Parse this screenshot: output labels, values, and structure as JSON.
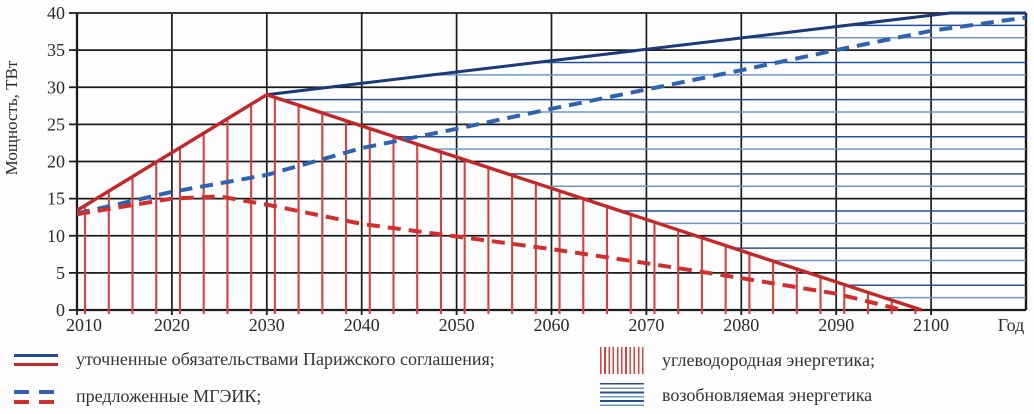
{
  "chart_data": {
    "type": "line",
    "title": "",
    "xlabel": "Год",
    "ylabel": "Мощность, ТВт",
    "xlim": [
      2010,
      2110
    ],
    "ylim": [
      0,
      40
    ],
    "x_ticks": [
      2010,
      2020,
      2030,
      2040,
      2050,
      2060,
      2070,
      2080,
      2090,
      2100
    ],
    "y_ticks": [
      0,
      5,
      10,
      15,
      20,
      25,
      30,
      35,
      40
    ],
    "grid": true,
    "legend_position": "bottom",
    "series": [
      {
        "name": "уточненные обязательствами Парижского соглашения — всего (синяя сплошная)",
        "style": "solid",
        "color": "#1a3a78",
        "width": 3,
        "points": [
          [
            2010,
            13.4
          ],
          [
            2030,
            29
          ],
          [
            2102,
            40
          ],
          [
            2110,
            40
          ]
        ]
      },
      {
        "name": "уточненные обязательствами Парижского соглашения — углеводородная (красная сплошная)",
        "style": "solid",
        "color": "#c32728",
        "width": 3.4,
        "points": [
          [
            2010,
            13.4
          ],
          [
            2030,
            29
          ],
          [
            2099,
            0
          ]
        ]
      },
      {
        "name": "предложенные МГЭИК — всего (синяя штриховая)",
        "style": "dashed",
        "color": "#2f63b0",
        "width": 4,
        "points": [
          [
            2010,
            13.0
          ],
          [
            2020,
            15.9
          ],
          [
            2030,
            18.2
          ],
          [
            2040,
            21.8
          ],
          [
            2050,
            24.4
          ],
          [
            2060,
            27.1
          ],
          [
            2070,
            29.7
          ],
          [
            2080,
            32.3
          ],
          [
            2090,
            35.0
          ],
          [
            2100,
            37.6
          ],
          [
            2110,
            39.4
          ]
        ]
      },
      {
        "name": "предложенные МГЭИК — углеводородная (красная штриховая)",
        "style": "dashed",
        "color": "#cf2f2f",
        "width": 4,
        "points": [
          [
            2010,
            12.9
          ],
          [
            2020,
            15.0
          ],
          [
            2025,
            15.3
          ],
          [
            2030,
            14.2
          ],
          [
            2040,
            11.6
          ],
          [
            2050,
            9.9
          ],
          [
            2060,
            8.2
          ],
          [
            2070,
            6.3
          ],
          [
            2080,
            4.3
          ],
          [
            2090,
            2.2
          ],
          [
            2097,
            0
          ]
        ]
      }
    ],
    "areas": [
      {
        "name": "углеводородная энергетика",
        "hatch": "vertical",
        "color": "#d6423e",
        "region": "под красной сплошной линией, 2010–2099"
      },
      {
        "name": "возобновляемая энергетика",
        "hatch": "horizontal",
        "color_dark": "#27509a",
        "color_light": "#6d95cd",
        "region": "между красной и синей сплошными линиями, 2030–2110"
      }
    ]
  },
  "axes": {
    "x_title": "Год",
    "y_title": "Мощность, ТВт"
  },
  "legend": {
    "items": [
      {
        "label": "уточненные обязательствами Парижского соглашения;"
      },
      {
        "label": "предложенные МГЭИК;"
      },
      {
        "label": "углеводородная энергетика;"
      },
      {
        "label": "возобновляемая энергетика"
      }
    ]
  },
  "style": {
    "grid_color": "#1c1c1c",
    "text_color": "#2b2b2b",
    "blue_solid": "#1a3a78",
    "red_solid": "#c32728",
    "blue_dashed": "#2f63b0",
    "red_dashed": "#cf2f2f",
    "red_hatch": "#d6423e",
    "blue_hatch_dark": "#27509a",
    "blue_hatch_light": "#6d95cd"
  }
}
